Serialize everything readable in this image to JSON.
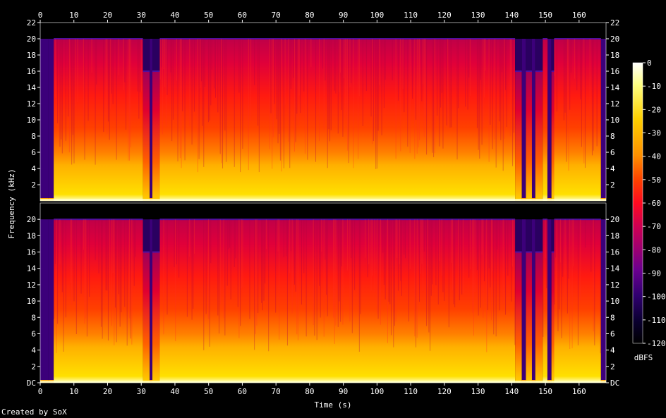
{
  "chart_data": {
    "type": "heatmap",
    "xlabel": "Time (s)",
    "ylabel": "Frequency (kHz)",
    "colorbar_label": "dBFS",
    "x_range": [
      0,
      168
    ],
    "x_ticks": [
      0,
      10,
      20,
      30,
      40,
      50,
      60,
      70,
      80,
      90,
      100,
      110,
      120,
      130,
      140,
      150,
      160
    ],
    "channels": [
      {
        "y_range": [
          0,
          22
        ],
        "y_ticks": [
          "2",
          "4",
          "6",
          "8",
          "10",
          "12",
          "14",
          "16",
          "18",
          "20",
          "22"
        ]
      },
      {
        "y_range": [
          0,
          22
        ],
        "y_ticks": [
          "DC",
          "2",
          "4",
          "6",
          "8",
          "10",
          "12",
          "14",
          "16",
          "18",
          "20"
        ]
      }
    ],
    "colorbar_range": [
      -120,
      0
    ],
    "colorbar_ticks": [
      "0",
      "-10",
      "-20",
      "-30",
      "-40",
      "-50",
      "-60",
      "-70",
      "-80",
      "-90",
      "-100",
      "-110",
      "-120"
    ],
    "colormap": [
      "#ffffff",
      "#ffff80",
      "#ffe000",
      "#ffa000",
      "#ff5000",
      "#ff1010",
      "#d0003a",
      "#9a0060",
      "#60008a",
      "#2a0060",
      "#000000"
    ],
    "segments": [
      {
        "start": 0.0,
        "end": 2.5,
        "kind": "quiet"
      },
      {
        "start": 2.5,
        "end": 4.0,
        "kind": "gap_cutoff16"
      },
      {
        "start": 4.0,
        "end": 30.5,
        "kind": "loud",
        "cutoff_khz": 20
      },
      {
        "start": 30.5,
        "end": 32.5,
        "kind": "lowpass",
        "cutoff_khz": 16
      },
      {
        "start": 32.5,
        "end": 33.3,
        "kind": "quiet"
      },
      {
        "start": 33.3,
        "end": 35.5,
        "kind": "lowpass",
        "cutoff_khz": 16
      },
      {
        "start": 35.5,
        "end": 141.0,
        "kind": "loud",
        "cutoff_khz": 20
      },
      {
        "start": 141.0,
        "end": 143.0,
        "kind": "lowpass",
        "cutoff_khz": 16
      },
      {
        "start": 143.0,
        "end": 144.2,
        "kind": "quiet"
      },
      {
        "start": 144.2,
        "end": 146.0,
        "kind": "lowpass",
        "cutoff_khz": 16
      },
      {
        "start": 146.0,
        "end": 147.0,
        "kind": "quiet"
      },
      {
        "start": 147.0,
        "end": 149.2,
        "kind": "lowpass",
        "cutoff_khz": 16
      },
      {
        "start": 149.2,
        "end": 150.6,
        "kind": "loud",
        "cutoff_khz": 20
      },
      {
        "start": 150.6,
        "end": 151.8,
        "kind": "quiet"
      },
      {
        "start": 151.8,
        "end": 152.6,
        "kind": "lowpass",
        "cutoff_khz": 16
      },
      {
        "start": 152.6,
        "end": 166.5,
        "kind": "loud",
        "cutoff_khz": 20
      },
      {
        "start": 166.5,
        "end": 168.0,
        "kind": "quiet"
      }
    ]
  },
  "footer": {
    "created_by": "Created by SoX"
  }
}
